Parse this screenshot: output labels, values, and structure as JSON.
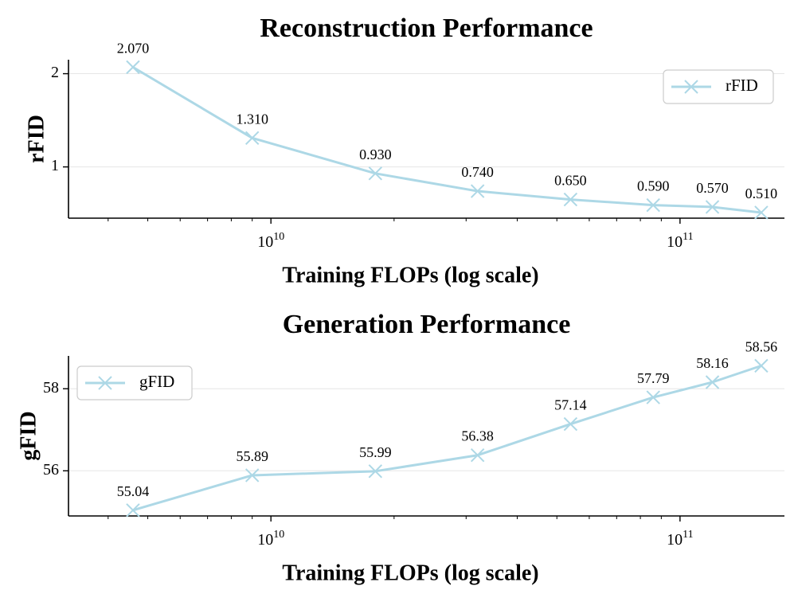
{
  "chart_data": [
    {
      "type": "line",
      "title": "Reconstruction Performance",
      "xlabel": "Training FLOPs (log scale)",
      "ylabel": "rFID",
      "xscale": "log",
      "xlim": [
        3200000000.0,
        180000000000.0
      ],
      "ylim": [
        0.45,
        2.15
      ],
      "x_tick_labels": [
        "10",
        "11"
      ],
      "y_ticks": [
        1,
        2
      ],
      "y_tick_labels": [
        "1",
        "2"
      ],
      "legend_position": "upper right",
      "grid": "horizontal",
      "color": "#add8e6",
      "marker": "x",
      "series": [
        {
          "name": "rFID",
          "x": [
            4600000000.0,
            9000000000.0,
            18000000000.0,
            32000000000.0,
            54000000000.0,
            86000000000.0,
            120000000000.0,
            158000000000.0
          ],
          "values": [
            2.07,
            1.31,
            0.93,
            0.74,
            0.65,
            0.59,
            0.57,
            0.51
          ],
          "labels": [
            "2.070",
            "1.310",
            "0.930",
            "0.740",
            "0.650",
            "0.590",
            "0.570",
            "0.510"
          ]
        }
      ]
    },
    {
      "type": "line",
      "title": "Generation Performance",
      "xlabel": "Training FLOPs (log scale)",
      "ylabel": "gFID",
      "xscale": "log",
      "xlim": [
        3200000000.0,
        180000000000.0
      ],
      "ylim": [
        54.9,
        58.8
      ],
      "x_tick_labels": [
        "10",
        "11"
      ],
      "y_ticks": [
        56,
        58
      ],
      "y_tick_labels": [
        "56",
        "58"
      ],
      "legend_position": "upper left",
      "grid": "horizontal",
      "color": "#add8e6",
      "marker": "x",
      "series": [
        {
          "name": "gFID",
          "x": [
            4600000000.0,
            9000000000.0,
            18000000000.0,
            32000000000.0,
            54000000000.0,
            86000000000.0,
            120000000000.0,
            158000000000.0
          ],
          "values": [
            55.04,
            55.89,
            55.99,
            56.38,
            57.14,
            57.79,
            58.16,
            58.56
          ],
          "labels": [
            "55.04",
            "55.89",
            "55.99",
            "56.38",
            "57.14",
            "57.79",
            "58.16",
            "58.56"
          ]
        }
      ]
    }
  ]
}
